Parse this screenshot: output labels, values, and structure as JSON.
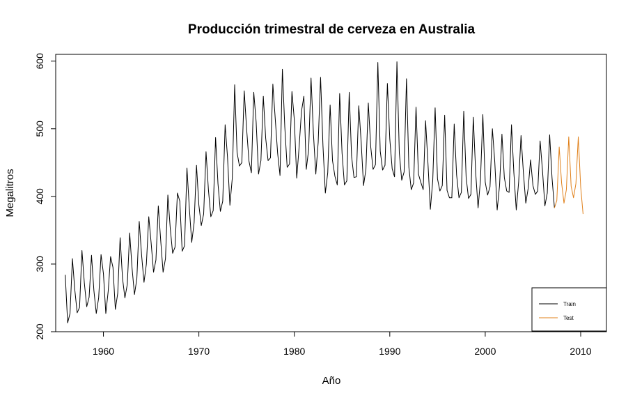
{
  "chart_data": {
    "type": "line",
    "title": "Producción trimestral de cerveza en Australia",
    "xlabel": "Año",
    "ylabel": "Megalitros",
    "xlim": [
      1955.0,
      2012.7
    ],
    "ylim": [
      200,
      610
    ],
    "x_ticks": [
      1960,
      1970,
      1980,
      1990,
      2000,
      2010
    ],
    "y_ticks": [
      200,
      300,
      400,
      500,
      600
    ],
    "grid": false,
    "legend_position": "bottom-right",
    "frequency": "quarterly",
    "series": [
      {
        "name": "Train",
        "color": "#000000",
        "x_start": 1956.0,
        "values": [
          284,
          213,
          227,
          308,
          262,
          228,
          236,
          320,
          272,
          237,
          251,
          313,
          261,
          227,
          250,
          314,
          286,
          227,
          260,
          311,
          295,
          233,
          257,
          339,
          279,
          250,
          270,
          346,
          294,
          255,
          278,
          363,
          313,
          273,
          300,
          370,
          331,
          288,
          306,
          386,
          335,
          288,
          308,
          402,
          353,
          316,
          325,
          405,
          393,
          319,
          327,
          442,
          383,
          332,
          361,
          446,
          387,
          357,
          374,
          466,
          410,
          370,
          379,
          487,
          419,
          378,
          393,
          506,
          458,
          387,
          427,
          565,
          465,
          445,
          450,
          556,
          500,
          452,
          435,
          554,
          510,
          433,
          453,
          548,
          486,
          453,
          457,
          566,
          515,
          464,
          431,
          588,
          503,
          443,
          448,
          555,
          513,
          427,
          473,
          526,
          548,
          440,
          469,
          575,
          493,
          433,
          480,
          576,
          475,
          405,
          435,
          535,
          453,
          430,
          417,
          552,
          464,
          417,
          423,
          554,
          459,
          428,
          429,
          534,
          481,
          416,
          440,
          538,
          474,
          440,
          447,
          598,
          467,
          439,
          446,
          567,
          485,
          441,
          429,
          599,
          464,
          424,
          436,
          574,
          443,
          410,
          420,
          532,
          433,
          421,
          410,
          512,
          449,
          381,
          423,
          531,
          426,
          408,
          416,
          520,
          409,
          398,
          398,
          507,
          432,
          398,
          406,
          526,
          428,
          397,
          403,
          517,
          435,
          383,
          424,
          521,
          421,
          402,
          414,
          500,
          451,
          380,
          416,
          492,
          428,
          408,
          406,
          506,
          435,
          380,
          421,
          490,
          435,
          390,
          412,
          454,
          416,
          403,
          408,
          482,
          438,
          386,
          405,
          491,
          427,
          383
        ]
      },
      {
        "name": "Test",
        "color": "#e0801a",
        "x_start": 2007.5,
        "values": [
          394,
          473,
          420,
          390,
          410,
          488,
          415,
          398,
          419,
          488,
          414,
          374
        ]
      }
    ]
  }
}
